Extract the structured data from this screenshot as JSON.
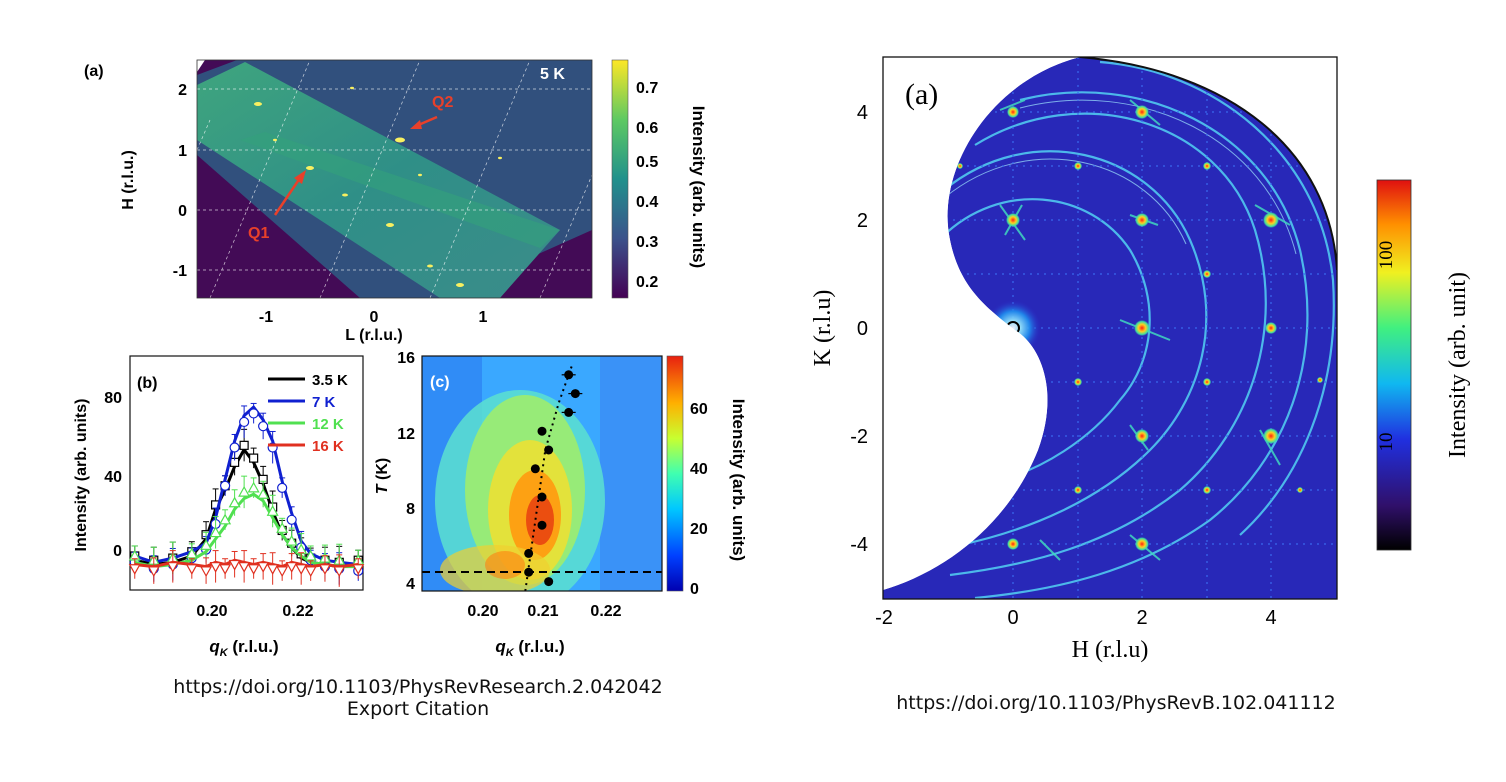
{
  "left_figure": {
    "panel_a": {
      "label": "(a)",
      "temperature": "5 K",
      "xlabel": "L (r.l.u.)",
      "ylabel": "H (r.l.u.)",
      "xticks": [
        "-1",
        "0",
        "1"
      ],
      "yticks": [
        "2",
        "1",
        "0",
        "-1"
      ],
      "annotations": [
        "Q1",
        "Q2"
      ],
      "colorbar": {
        "label": "Intensity (arb. units)",
        "ticks": [
          "0.7",
          "0.6",
          "0.5",
          "0.4",
          "0.3",
          "0.2"
        ],
        "colormap": "viridis"
      }
    },
    "panel_b": {
      "label": "(b)",
      "xlabel_q": "q",
      "xlabel_sub": "K",
      "xlabel_rest": " (r.l.u.)",
      "ylabel": "Intensity (arb. units)",
      "xticks": [
        "0.20",
        "0.22"
      ],
      "yticks": [
        "80",
        "40",
        "0"
      ]
    },
    "panel_c": {
      "label": "(c)",
      "xlabel_q": "q",
      "xlabel_sub": "K",
      "xlabel_rest": " (r.l.u.)",
      "ylabel_T": "T",
      "ylabel_rest": " (K)",
      "xticks": [
        "0.20",
        "0.21",
        "0.22"
      ],
      "yticks": [
        "16",
        "12",
        "8",
        "4"
      ],
      "colorbar": {
        "label": "Intensity (arb. units)",
        "ticks": [
          "60",
          "40",
          "20",
          "0"
        ],
        "colormap": "jet"
      }
    },
    "citation_line1": "https://doi.org/10.1103/PhysRevResearch.2.042042",
    "citation_line2": "Export Citation"
  },
  "right_figure": {
    "label": "(a)",
    "xlabel": "H (r.l.u)",
    "ylabel": "K (r.l.u)",
    "xticks": [
      "-2",
      "0",
      "2",
      "4"
    ],
    "yticks": [
      "4",
      "2",
      "0",
      "-2",
      "-4"
    ],
    "colorbar": {
      "label": "Intensity (arb. unit)",
      "ticks": [
        "100",
        "10"
      ],
      "scale": "log",
      "colormap": "jet"
    },
    "citation": "https://doi.org/10.1103/PhysRevB.102.041112"
  },
  "chart_data": [
    {
      "type": "line",
      "panel": "(b)",
      "xlabel": "q_K (r.l.u.)",
      "ylabel": "Intensity (arb. units)",
      "xlim": [
        0.185,
        0.234
      ],
      "ylim": [
        -10,
        100
      ],
      "legend_placement": "top-right",
      "series": [
        {
          "name": "3.5 K",
          "color": "#000000",
          "marker": "square",
          "x": [
            0.186,
            0.19,
            0.194,
            0.198,
            0.201,
            0.203,
            0.205,
            0.207,
            0.209,
            0.211,
            0.213,
            0.215,
            0.217,
            0.219,
            0.221,
            0.223,
            0.226,
            0.229,
            0.233
          ],
          "y": [
            4,
            2,
            3,
            6,
            14,
            28,
            37,
            48,
            56,
            50,
            40,
            27,
            16,
            10,
            5,
            3,
            2,
            1,
            2
          ]
        },
        {
          "name": "7 K",
          "color": "#1020d0",
          "marker": "circle",
          "x": [
            0.186,
            0.19,
            0.194,
            0.198,
            0.201,
            0.203,
            0.205,
            0.207,
            0.209,
            0.211,
            0.213,
            0.215,
            0.217,
            0.219,
            0.221,
            0.223,
            0.226,
            0.229,
            0.233
          ],
          "y": [
            6,
            3,
            5,
            8,
            12,
            24,
            42,
            60,
            72,
            76,
            70,
            60,
            41,
            26,
            13,
            7,
            4,
            3,
            2
          ]
        },
        {
          "name": "12 K",
          "color": "#50e050",
          "marker": "triangle-up",
          "x": [
            0.186,
            0.19,
            0.194,
            0.198,
            0.201,
            0.203,
            0.205,
            0.207,
            0.209,
            0.211,
            0.213,
            0.215,
            0.217,
            0.219,
            0.221,
            0.223,
            0.226,
            0.229,
            0.233
          ],
          "y": [
            3,
            1,
            2,
            4,
            8,
            14,
            20,
            28,
            33,
            35,
            32,
            24,
            16,
            10,
            6,
            3,
            2,
            1,
            1
          ]
        },
        {
          "name": "16 K",
          "color": "#e03020",
          "marker": "triangle-down",
          "x": [
            0.186,
            0.19,
            0.194,
            0.198,
            0.201,
            0.203,
            0.205,
            0.207,
            0.209,
            0.211,
            0.213,
            0.215,
            0.217,
            0.219,
            0.221,
            0.223,
            0.226,
            0.229,
            0.233
          ],
          "y": [
            2,
            1,
            3,
            2,
            1,
            3,
            2,
            4,
            3,
            2,
            3,
            2,
            1,
            3,
            2,
            1,
            2,
            1,
            2
          ]
        }
      ]
    },
    {
      "type": "heatmap",
      "panel": "(c)",
      "xlabel": "q_K (r.l.u.)",
      "ylabel": "T (K)",
      "xlim": [
        0.192,
        0.228
      ],
      "ylim": [
        3.5,
        16
      ],
      "colorbar_range": [
        0,
        75
      ],
      "peak_positions": {
        "q_K": [
          0.214,
          0.215,
          0.214,
          0.21,
          0.211,
          0.209,
          0.21,
          0.21,
          0.208,
          0.208,
          0.211
        ],
        "T": [
          15.0,
          14.0,
          13.0,
          12.0,
          11.0,
          10.0,
          8.5,
          7.0,
          5.5,
          4.5,
          4.0
        ]
      },
      "dashed_line_T": 4.5
    }
  ]
}
